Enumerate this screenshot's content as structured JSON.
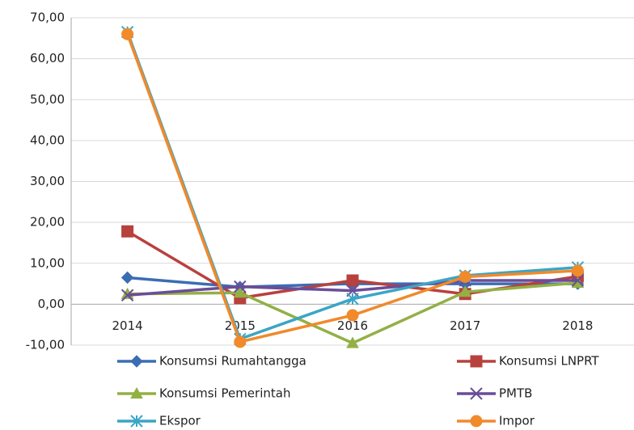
{
  "chart_data": {
    "type": "line",
    "categories": [
      "2014",
      "2015",
      "2016",
      "2017",
      "2018"
    ],
    "series": [
      {
        "name": "Konsumsi Rumahtangga",
        "color": "#3b6db3",
        "marker": "diamond",
        "values": [
          6.5,
          4.2,
          5.0,
          5.0,
          5.0
        ]
      },
      {
        "name": "Konsumsi LNPRT",
        "color": "#b8413d",
        "marker": "square",
        "values": [
          17.8,
          1.5,
          5.8,
          2.5,
          6.8
        ]
      },
      {
        "name": "Konsumsi Pemerintah",
        "color": "#93b045",
        "marker": "triangle",
        "values": [
          2.5,
          2.8,
          -9.5,
          3.0,
          5.2
        ]
      },
      {
        "name": "PMTB",
        "color": "#6a4d98",
        "marker": "cross",
        "values": [
          2.2,
          4.3,
          3.3,
          5.8,
          5.8
        ]
      },
      {
        "name": "Ekspor",
        "color": "#3ba5c5",
        "marker": "star",
        "values": [
          66.5,
          -8.5,
          1.3,
          7.0,
          9.0
        ]
      },
      {
        "name": "Impor",
        "color": "#f08a2b",
        "marker": "circle",
        "values": [
          66.0,
          -9.2,
          -2.7,
          6.7,
          8.2
        ]
      }
    ],
    "ylim": [
      -10,
      70
    ],
    "yticks": [
      {
        "value": -10,
        "label": "-10,00"
      },
      {
        "value": 0,
        "label": "0,00"
      },
      {
        "value": 10,
        "label": "10,00"
      },
      {
        "value": 20,
        "label": "20,00"
      },
      {
        "value": 30,
        "label": "30,00"
      },
      {
        "value": 40,
        "label": "40,00"
      },
      {
        "value": 50,
        "label": "50,00"
      },
      {
        "value": 60,
        "label": "60,00"
      },
      {
        "value": 70,
        "label": "70,00"
      }
    ],
    "grid": true,
    "legend": "bottom"
  }
}
